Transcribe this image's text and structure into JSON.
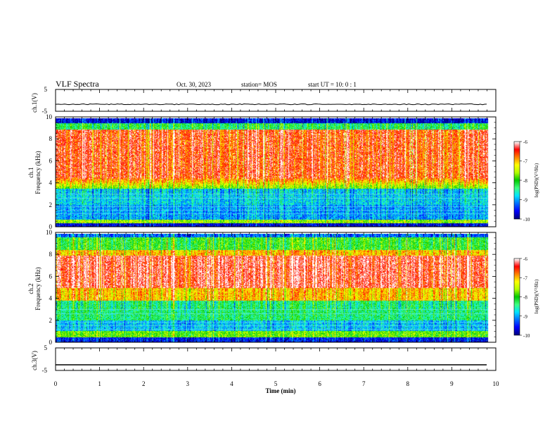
{
  "header": {
    "title": "VLF Spectra",
    "date": "Oct. 30, 2023",
    "station": "station= MOS",
    "start": "start  UT =   10: 0  : 1"
  },
  "colors": {
    "colormap": [
      "#00007f",
      "#0000ff",
      "#0070ff",
      "#00e6ff",
      "#40ff80",
      "#00c800",
      "#b4ff00",
      "#ffff00",
      "#ff8000",
      "#ff0000",
      "#ffffff"
    ]
  },
  "chart_data": [
    {
      "type": "line",
      "panel": "ch1-voltage",
      "ylabel": "ch.1(V)",
      "ylim": [
        -5,
        5
      ],
      "yticks": [
        "5",
        "-5"
      ],
      "series": [
        {
          "values_note": "flat",
          "level": -1.8
        }
      ]
    },
    {
      "type": "heatmap",
      "panel": "ch1-spectrogram",
      "ylabel": "ch.1\nFrequency (kHz)",
      "ylabel_parts": [
        "ch.1",
        "Frequency (kHz)"
      ],
      "ylim": [
        0,
        10
      ],
      "yticks": [
        "0",
        "2",
        "4",
        "6",
        "8",
        "10"
      ],
      "colorbar": {
        "label": "log(PSD)(V²/Hz)",
        "range": [
          -10,
          -6
        ],
        "ticks": [
          "-6",
          "-7",
          "-8",
          "-9",
          "-10"
        ]
      }
    },
    {
      "type": "heatmap",
      "panel": "ch2-spectrogram",
      "ylabel": "ch.2\nFrequency (kHz)",
      "ylabel_parts": [
        "ch.2",
        "Frequency (kHz)"
      ],
      "ylim": [
        0,
        10
      ],
      "yticks": [
        "0",
        "2",
        "4",
        "6",
        "8",
        "10"
      ],
      "colorbar": {
        "label": "log(PSD)(V²/Hz)",
        "range": [
          -10,
          -6
        ],
        "ticks": [
          "-6",
          "-7",
          "-8",
          "-9",
          "-10"
        ]
      }
    },
    {
      "type": "line",
      "panel": "ch3-voltage",
      "ylabel": "ch.3(V)",
      "ylim": [
        -5,
        5
      ],
      "yticks": [
        "5",
        "-5"
      ],
      "series": [
        {
          "values_note": "flat",
          "level": -2.5
        }
      ]
    }
  ],
  "xaxis": {
    "label": "Time  (min)",
    "xlim": [
      0,
      10
    ],
    "ticks": [
      "0",
      "1",
      "2",
      "3",
      "4",
      "5",
      "6",
      "7",
      "8",
      "9",
      "10"
    ],
    "data_end": 9.83
  }
}
